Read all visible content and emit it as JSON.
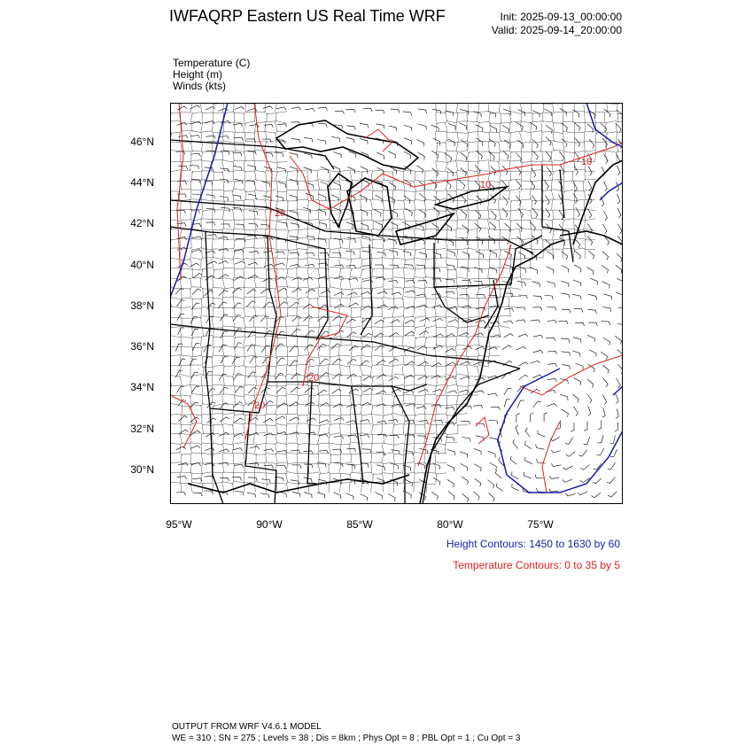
{
  "header": {
    "title": "IWFAQRP Eastern US Real Time WRF",
    "init": "Init: 2025-09-13_00:00:00",
    "valid": "Valid: 2025-09-14_20:00:00"
  },
  "variables": [
    "Temperature   (C)",
    "Height   (m)",
    "Winds   (kts)"
  ],
  "axes": {
    "lat_labels": [
      "46°N",
      "44°N",
      "42°N",
      "40°N",
      "38°N",
      "36°N",
      "34°N",
      "32°N",
      "30°N"
    ],
    "lon_labels": [
      "95°W",
      "90°W",
      "85°W",
      "80°W",
      "75°W"
    ]
  },
  "contour_labels": {
    "temperature": [
      "10",
      "10",
      "20",
      "20",
      "20"
    ]
  },
  "legend": {
    "height": "Height Contours: 1450 to 1630 by 60",
    "temperature": "Temperature Contours: 0 to 35 by 5"
  },
  "colors": {
    "height_contour": "#1a1aa6",
    "temperature_contour": "#e02020",
    "boundaries": "#000000"
  },
  "footer": {
    "line1": "OUTPUT FROM WRF V4.6.1 MODEL",
    "line2": "WE = 310 ; SN = 275 ; Levels = 38 ; Dis = 8km ; Phys Opt = 8 ; PBL Opt = 1 ; Cu Opt = 3"
  }
}
